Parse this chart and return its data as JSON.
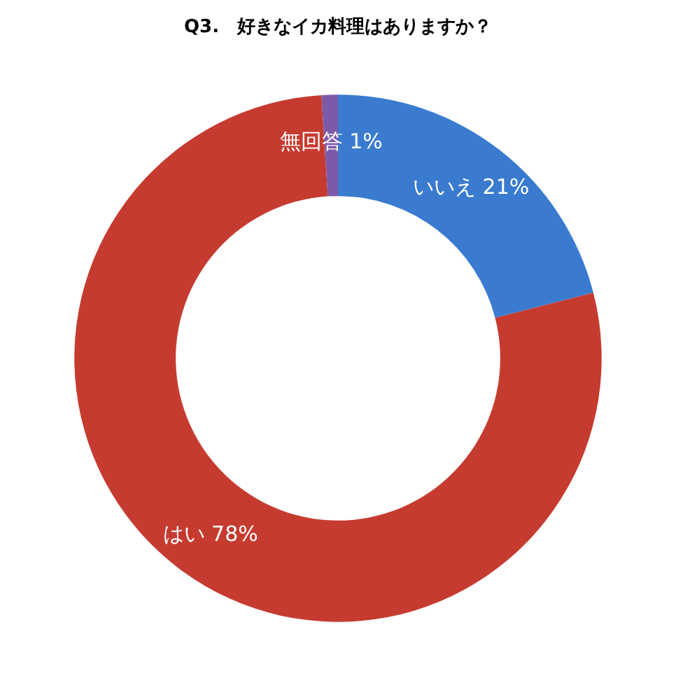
{
  "chart_data": {
    "type": "donut",
    "title": "Q3.　好きなイカ料理はありますか？",
    "categories": [
      "いいえ",
      "はい",
      "無回答"
    ],
    "values": [
      21,
      78,
      1
    ],
    "value_labels": [
      "21%",
      "78%",
      "1%"
    ],
    "colors": [
      "#3a7bd0",
      "#c63b30",
      "#7d5aa8"
    ],
    "legend": false
  }
}
